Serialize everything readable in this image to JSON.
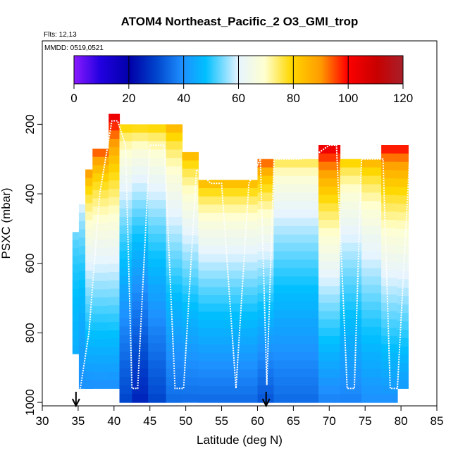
{
  "chart_data": {
    "type": "heatmap",
    "title": "ATOM4 Northeast_Pacific_2 O3_GMI_trop",
    "flights_label": "Flts: 12,13",
    "date_label": "MMDD: 0519,0521",
    "xlabel": "Latitude (deg N)",
    "ylabel": "PSXC (mbar)",
    "xlim": [
      30,
      85
    ],
    "ylim": [
      1010,
      -40
    ],
    "xticks": [
      "30",
      "35",
      "40",
      "45",
      "50",
      "55",
      "60",
      "65",
      "70",
      "75",
      "80",
      "85"
    ],
    "yticks": [
      "200",
      "400",
      "600",
      "800",
      "1000"
    ],
    "colorbar": {
      "range": [
        0,
        120
      ],
      "ticks": [
        "0",
        "20",
        "40",
        "60",
        "80",
        "100",
        "120"
      ]
    },
    "arrows_at_latitude": [
      34.7,
      61.2
    ],
    "column_data": [
      {
        "lat": 34.7,
        "top_p": 510,
        "bottom_p": 860,
        "o3_top": 55,
        "o3_bottom": 45
      },
      {
        "lat": 35.5,
        "top_p": 430,
        "bottom_p": 960,
        "o3_top": 62,
        "o3_bottom": 40
      },
      {
        "lat": 36.5,
        "top_p": 330,
        "bottom_p": 960,
        "o3_top": 95,
        "o3_bottom": 40
      },
      {
        "lat": 37.5,
        "top_p": 270,
        "bottom_p": 960,
        "o3_top": 100,
        "o3_bottom": 40
      },
      {
        "lat": 38.5,
        "top_p": 270,
        "bottom_p": 960,
        "o3_top": 100,
        "o3_bottom": 40
      },
      {
        "lat": 40.0,
        "top_p": 170,
        "bottom_p": 960,
        "o3_top": 110,
        "o3_bottom": 40
      },
      {
        "lat": 41.5,
        "top_p": 200,
        "bottom_p": 1000,
        "o3_top": 85,
        "o3_bottom": 30
      },
      {
        "lat": 43.5,
        "top_p": 200,
        "bottom_p": 1000,
        "o3_top": 85,
        "o3_bottom": 25
      },
      {
        "lat": 46.0,
        "top_p": 200,
        "bottom_p": 1000,
        "o3_top": 85,
        "o3_bottom": 30
      },
      {
        "lat": 48.5,
        "top_p": 200,
        "bottom_p": 1000,
        "o3_top": 90,
        "o3_bottom": 35
      },
      {
        "lat": 50.5,
        "top_p": 280,
        "bottom_p": 1000,
        "o3_top": 90,
        "o3_bottom": 35
      },
      {
        "lat": 53.0,
        "top_p": 360,
        "bottom_p": 1000,
        "o3_top": 90,
        "o3_bottom": 35
      },
      {
        "lat": 56.0,
        "top_p": 360,
        "bottom_p": 1000,
        "o3_top": 90,
        "o3_bottom": 35
      },
      {
        "lat": 59.0,
        "top_p": 360,
        "bottom_p": 1000,
        "o3_top": 90,
        "o3_bottom": 35
      },
      {
        "lat": 61.0,
        "top_p": 300,
        "bottom_p": 1000,
        "o3_top": 100,
        "o3_bottom": 32
      },
      {
        "lat": 63.5,
        "top_p": 300,
        "bottom_p": 1000,
        "o3_top": 80,
        "o3_bottom": 35
      },
      {
        "lat": 67.0,
        "top_p": 300,
        "bottom_p": 1000,
        "o3_top": 80,
        "o3_bottom": 35
      },
      {
        "lat": 70.0,
        "top_p": 260,
        "bottom_p": 1000,
        "o3_top": 110,
        "o3_bottom": 38
      },
      {
        "lat": 73.0,
        "top_p": 300,
        "bottom_p": 1000,
        "o3_top": 85,
        "o3_bottom": 38
      },
      {
        "lat": 76.0,
        "top_p": 300,
        "bottom_p": 1000,
        "o3_top": 90,
        "o3_bottom": 40
      },
      {
        "lat": 78.5,
        "top_p": 260,
        "bottom_p": 1000,
        "o3_top": 105,
        "o3_bottom": 40
      },
      {
        "lat": 80.5,
        "top_p": 260,
        "bottom_p": 960,
        "o3_top": 105,
        "o3_bottom": 42
      }
    ],
    "flight_track": {
      "lat": [
        35.3,
        36.5,
        38.0,
        39.7,
        40.5,
        41.6,
        42.5,
        43.3,
        45.0,
        47.0,
        48.5,
        49.7,
        51.5,
        53.5,
        55.0,
        57.0,
        58.8,
        60.4,
        61.3,
        62.3,
        63.2,
        64.5,
        66.0,
        68.0,
        70.0,
        71.0,
        72.5,
        73.5,
        74.5,
        76.5,
        77.5,
        78.5,
        79.5,
        81.3
      ],
      "p": [
        960,
        800,
        400,
        190,
        190,
        260,
        960,
        960,
        260,
        260,
        960,
        960,
        330,
        370,
        370,
        960,
        370,
        300,
        950,
        300,
        300,
        300,
        300,
        290,
        260,
        260,
        960,
        960,
        300,
        300,
        300,
        960,
        960,
        260
      ]
    }
  }
}
